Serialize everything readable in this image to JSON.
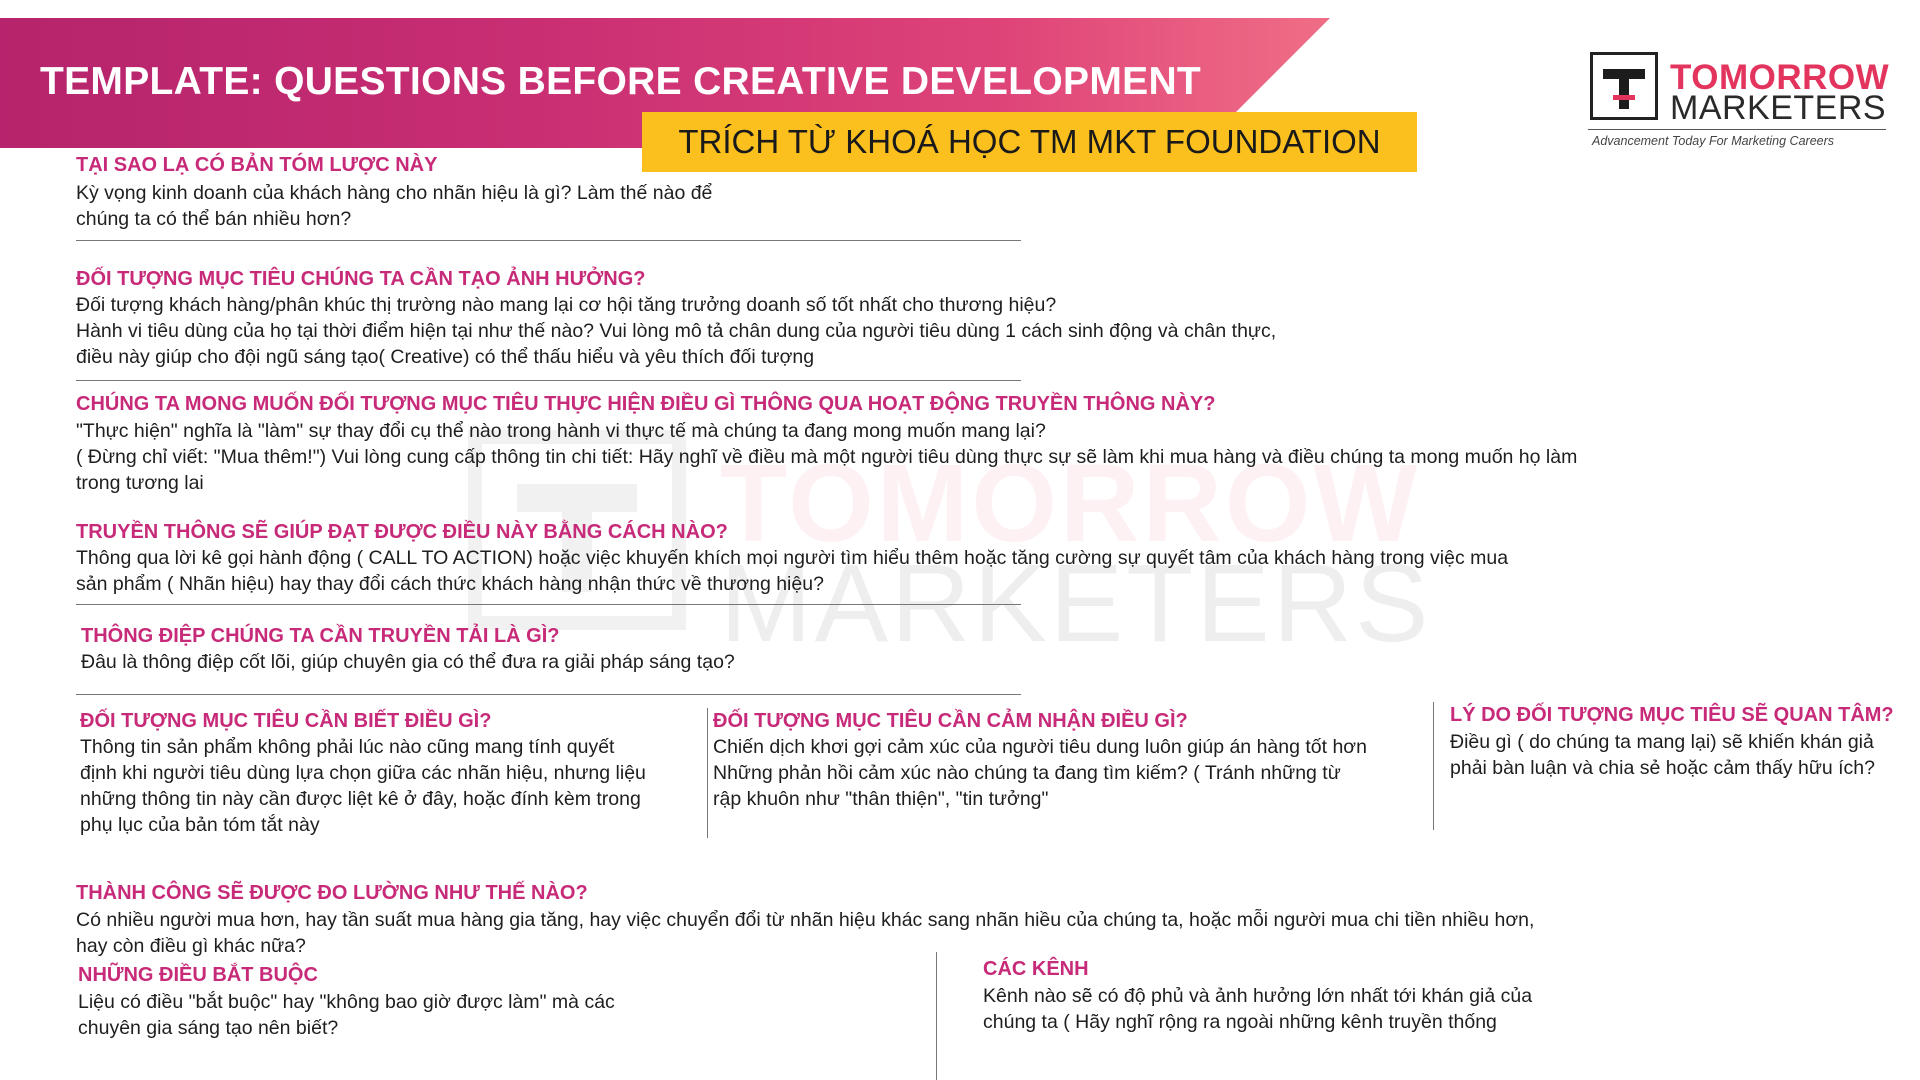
{
  "header": {
    "title": "TEMPLATE: QUESTIONS BEFORE CREATIVE DEVELOPMENT",
    "subtitle": "TRÍCH TỪ KHOÁ HỌC TM MKT FOUNDATION"
  },
  "logo": {
    "line1": "TOMORROW",
    "line2": "MARKETERS",
    "tagline": "Advancement Today For Marketing Careers"
  },
  "watermark": {
    "line1": "TOMORROW",
    "line2": "MARKETERS"
  },
  "sections": {
    "why": {
      "heading": "TẠI SAO LẠ CÓ BẢN TÓM LƯỢC NÀY",
      "lines": [
        "Kỳ vọng kinh doanh của khách hàng cho nhãn hiệu là gì? Làm thế nào để",
        "chúng ta có thể bán nhiều hơn?"
      ]
    },
    "target": {
      "heading": "ĐỐI TƯỢNG MỤC TIÊU CHÚNG TA CẦN TẠO ẢNH HƯỞNG?",
      "lines": [
        "Đối tượng khách hàng/phân khúc thị trường nào mang lại cơ hội tăng trưởng doanh số tốt nhất cho thương hiệu?",
        "Hành vi tiêu dùng của họ tại thời điểm hiện tại như thế nào? Vui lòng mô tả chân dung của người tiêu dùng 1 cách sinh động và chân thực,",
        "điều này giúp cho đội ngũ sáng tạo( Creative) có thể thấu hiểu và yêu thích đối tượng"
      ]
    },
    "action": {
      "heading": "CHÚNG TA MONG MUỐN ĐỐI TƯỢNG MỤC TIÊU THỰC HIỆN ĐIỀU GÌ THÔNG QUA HOẠT ĐỘNG TRUYỀN THÔNG NÀY?",
      "lines": [
        "\"Thực hiện\" nghĩa là \"làm\" sự thay đổi cụ thể nào trong hành vi thực tế  mà chúng ta đang mong muốn mang lại?",
        "( Đừng chỉ viết: \"Mua thêm!\") Vui lòng cung cấp thông tin chi tiết: Hãy nghĩ về điều mà một người tiêu dùng thực sự sẽ làm khi mua hàng và điều chúng ta mong muốn họ làm",
        "trong tương lai"
      ]
    },
    "how": {
      "heading": "TRUYỀN THÔNG SẼ GIÚP ĐẠT ĐƯỢC ĐIỀU NÀY BẰNG CÁCH NÀO?",
      "lines": [
        "Thông qua lời kê gọi hành động ( CALL TO ACTION) hoặc việc khuyến khích mọi người tìm hiểu thêm hoặc tăng cường sự quyết tâm của khách hàng trong việc mua",
        "sản phẩm ( Nhãn hiệu) hay thay đổi cách thức khách hàng nhận thức về thương hiệu?"
      ]
    },
    "message": {
      "heading": "THÔNG ĐIỆP CHÚNG TA CẦN TRUYỀN TẢI LÀ GÌ?",
      "lines": [
        "Đâu là thông điệp cốt lõi, giúp chuyên gia có thể đưa ra giải pháp sáng tạo?"
      ]
    },
    "know": {
      "heading": "ĐỐI TƯỢNG MỤC TIÊU CẦN BIẾT ĐIỀU GÌ?",
      "lines": [
        "Thông tin sản phẩm không phải lúc nào cũng mang tính quyết",
        "định khi người tiêu dùng lựa chọn giữa các nhãn hiệu, nhưng liệu",
        "những thông tin này cần được liệt kê ở đây, hoặc đính kèm trong",
        "phụ lục của bản tóm tắt này"
      ]
    },
    "feel": {
      "heading": "ĐỐI TƯỢNG MỤC TIÊU CẦN CẢM NHẬN ĐIỀU GÌ?",
      "lines": [
        "Chiến dịch khơi gợi cảm xúc của người tiêu dung luôn giúp án hàng tốt hơn",
        "Những phản hồi cảm xúc nào chúng ta đang tìm kiếm? ( Tránh những từ",
        "rập khuôn như \"thân thiện\", \"tin tưởng\""
      ]
    },
    "care": {
      "heading": "LÝ DO ĐỐI TƯỢNG MỤC TIÊU SẼ QUAN TÂM?",
      "lines": [
        "Điều gì ( do chúng ta mang lại) sẽ khiến khán giả",
        "phải bàn luận và chia sẻ hoặc cảm thấy hữu ích?"
      ]
    },
    "success": {
      "heading": "THÀNH CÔNG SẼ ĐƯỢC ĐO LƯỜNG NHƯ THẾ NÀO?",
      "lines": [
        "Có nhiều người mua hơn, hay tần suất mua hàng gia tăng, hay việc chuyển đổi từ nhãn hiệu khác sang nhãn hiều của chúng ta, hoặc mỗi người mua chi tiền nhiều hơn,",
        "hay còn điều gì khác nữa?"
      ]
    },
    "mandatory": {
      "heading": "NHỮNG ĐIỀU BẮT BUỘC",
      "lines": [
        "Liệu có điều \"bắt buộc\" hay \"không bao giờ được làm\" mà các",
        "chuyên gia sáng tạo nên biết?"
      ]
    },
    "channels": {
      "heading": "CÁC KÊNH",
      "lines": [
        "Kênh nào sẽ có độ phủ và ảnh hưởng lớn nhất tới khán giả của",
        "chúng ta ( Hãy nghĩ rộng ra ngoài những kênh truyền thống"
      ]
    }
  }
}
